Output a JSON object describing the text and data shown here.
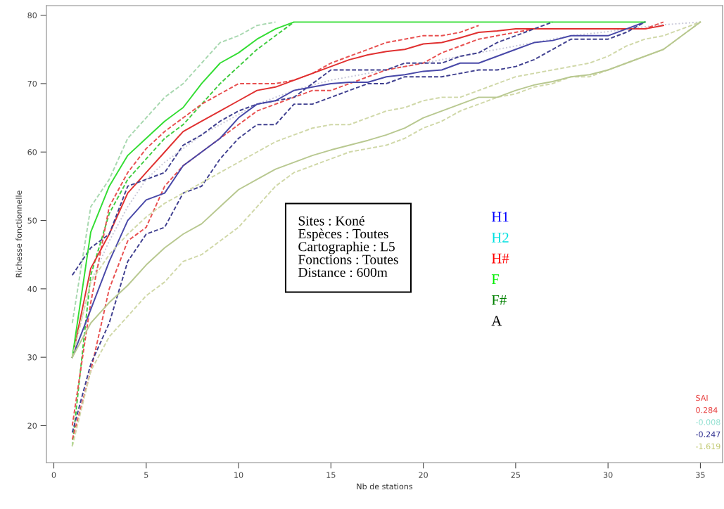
{
  "chart_data": {
    "type": "line",
    "xlabel": "Nb de stations",
    "ylabel": "Richesse fonctionnelle",
    "x": [
      1,
      2,
      3,
      4,
      5,
      6,
      7,
      8,
      9,
      10,
      11,
      12,
      13,
      14,
      15,
      16,
      17,
      18,
      19,
      20,
      21,
      22,
      23,
      24,
      25,
      26,
      27,
      28,
      29,
      30,
      31,
      32,
      33,
      34,
      35
    ],
    "xlim": [
      -0.4,
      36.2
    ],
    "ylim": [
      14.6,
      81.4
    ],
    "xticks": [
      0,
      5,
      10,
      15,
      20,
      25,
      30,
      35
    ],
    "yticks": [
      20,
      30,
      40,
      50,
      60,
      70,
      80
    ],
    "grid": false,
    "series": [
      {
        "color": "#c8c8d8",
        "line_style": "dotted",
        "values": [
          30,
          41,
          47,
          52,
          56,
          58.5,
          60.5,
          62.5,
          64,
          65.5,
          67,
          68,
          69,
          69.8,
          70.5,
          71,
          71.5,
          72,
          72.5,
          73,
          73.5,
          74,
          74.5,
          75,
          75.5,
          76,
          76.5,
          77,
          77.3,
          77.6,
          78,
          78.3,
          78.6,
          78.8,
          79
        ]
      },
      {
        "color": "#a8d8b0",
        "line_style": "dashed",
        "values": [
          35,
          52,
          56,
          62,
          65,
          68,
          70,
          73,
          76,
          77,
          78.5,
          79,
          null,
          null,
          null,
          null,
          null,
          null,
          null,
          null,
          null,
          null,
          null,
          null,
          null,
          null,
          null,
          null,
          null,
          null,
          null,
          null,
          null,
          null,
          null
        ]
      },
      {
        "color": "#40cc40",
        "line_style": "dashed",
        "values": [
          17,
          42,
          51,
          56,
          59,
          62,
          64,
          67,
          70,
          72.5,
          75,
          77,
          79,
          null,
          null,
          null,
          null,
          null,
          null,
          null,
          null,
          null,
          null,
          null,
          null,
          null,
          null,
          null,
          null,
          null,
          null,
          null,
          null,
          null,
          null
        ]
      },
      {
        "color": "#e85050",
        "line_style": "dashed",
        "values": [
          20,
          38,
          52,
          57,
          60.5,
          63,
          65,
          67,
          68.5,
          70,
          70,
          70,
          70.5,
          71.5,
          73,
          74,
          75,
          76,
          76.5,
          77,
          77,
          77.5,
          78.5,
          null,
          null,
          null,
          null,
          null,
          null,
          null,
          null,
          null,
          null,
          null,
          null
        ]
      },
      {
        "color": "#e85050",
        "line_style": "dashed",
        "values": [
          18,
          28,
          40,
          47,
          49,
          55,
          58,
          60,
          62,
          64,
          66,
          67,
          68,
          69,
          69,
          70,
          71,
          72,
          72.5,
          73,
          74.5,
          75.5,
          76.5,
          77,
          77.5,
          78,
          78,
          78,
          78,
          78,
          78,
          78,
          79,
          null,
          null
        ]
      },
      {
        "color": "#e03030",
        "line_style": "solid",
        "values": [
          30,
          43,
          48,
          54,
          57,
          60,
          63,
          64.5,
          66,
          67.5,
          69,
          69.5,
          70.5,
          71.5,
          72.5,
          73.5,
          74.2,
          74.7,
          75,
          75.8,
          76,
          76.7,
          77.5,
          77.7,
          78,
          78,
          78,
          78,
          78,
          78,
          78,
          78,
          78.5,
          null,
          null
        ]
      },
      {
        "color": "#404090",
        "line_style": "dashed",
        "values": [
          42,
          46,
          48,
          55,
          56,
          57,
          61,
          62.5,
          64.5,
          66,
          67,
          67.5,
          68,
          70,
          72,
          72,
          72,
          72,
          73,
          73,
          73,
          74,
          74.5,
          76,
          77,
          78,
          79,
          null,
          null,
          null,
          null,
          null,
          null,
          null,
          null
        ]
      },
      {
        "color": "#404090",
        "line_style": "dashed",
        "values": [
          19,
          29,
          35,
          44,
          48,
          49,
          54,
          55,
          59,
          62,
          64,
          64,
          67,
          67,
          68,
          69,
          70,
          70,
          71,
          71,
          71,
          71.5,
          72,
          72,
          72.5,
          73.5,
          75,
          76.5,
          76.5,
          76.5,
          77.5,
          79,
          null,
          null,
          null
        ]
      },
      {
        "color": "#4848a8",
        "line_style": "solid",
        "values": [
          30,
          37,
          44,
          50,
          53,
          54,
          58,
          60,
          62,
          65,
          67,
          67.5,
          69,
          69.5,
          70,
          70.2,
          70.2,
          71,
          71.3,
          71.8,
          72,
          73,
          73,
          74,
          75,
          76,
          76.3,
          77,
          77,
          77,
          78,
          79,
          null,
          null,
          null
        ]
      },
      {
        "color": "#33dd33",
        "line_style": "solid",
        "values": [
          30,
          48.3,
          55,
          59.5,
          62,
          64.5,
          66.5,
          70,
          73,
          74.5,
          76.5,
          78,
          79,
          79,
          79,
          79,
          79,
          79,
          79,
          79,
          79,
          79,
          79,
          79,
          79,
          79,
          79,
          79,
          79,
          79,
          79,
          79,
          null,
          null,
          null
        ]
      },
      {
        "color": "#d0d8a8",
        "line_style": "dashed",
        "values": [
          30,
          41,
          45,
          48,
          50.5,
          52.5,
          54,
          55.5,
          57,
          58.5,
          60,
          61.5,
          62.5,
          63.5,
          64,
          64,
          65,
          66,
          66.5,
          67.5,
          68,
          68,
          69,
          70,
          71,
          71.5,
          72,
          72.5,
          73,
          74,
          75.5,
          76.5,
          77,
          78,
          79
        ]
      },
      {
        "color": "#d0d8a8",
        "line_style": "dashed",
        "values": [
          17,
          28,
          33,
          36,
          39,
          41,
          44,
          45,
          47,
          49,
          52,
          55,
          57,
          58,
          59,
          60,
          60.5,
          61,
          62,
          63.5,
          64.5,
          66,
          67,
          68,
          68.5,
          69.5,
          70,
          71,
          71,
          72,
          73,
          74,
          75,
          77,
          79
        ]
      },
      {
        "color": "#b8c890",
        "line_style": "solid",
        "values": [
          30,
          35,
          38,
          40.5,
          43.5,
          46,
          48,
          49.5,
          52,
          54.5,
          56,
          57.5,
          58.5,
          59.5,
          60.3,
          61,
          61.7,
          62.5,
          63.5,
          65,
          66,
          67,
          68,
          68,
          69,
          69.8,
          70.3,
          71,
          71.3,
          72,
          73,
          74,
          75,
          77,
          79
        ]
      }
    ],
    "annotations": [
      "Sites : Koné",
      "Espèces : Toutes",
      "Cartographie : L5",
      "Fonctions : Toutes",
      "Distance : 600m",
      "H1",
      "H2",
      "H#",
      "F",
      "F#",
      "A",
      "SAI",
      "0.284",
      "-0.008",
      "-0.247",
      "-1.619"
    ]
  }
}
